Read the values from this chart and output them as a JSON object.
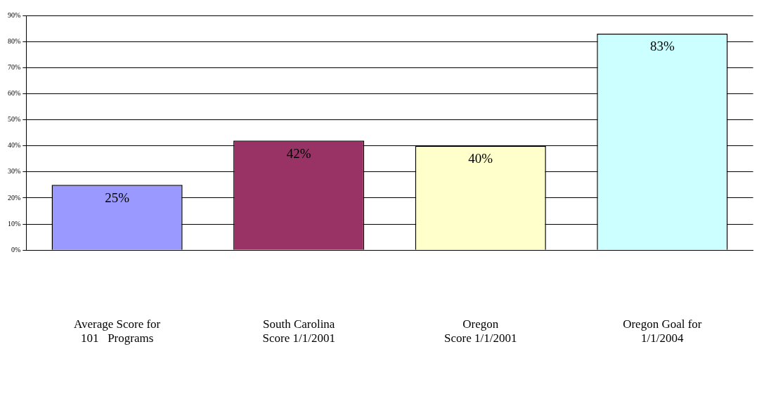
{
  "chart_data": {
    "type": "bar",
    "categories": [
      "Average Score for\n101   Programs",
      "South Carolina\nScore 1/1/2001",
      "Oregon\nScore 1/1/2001",
      "Oregon Goal for\n1/1/2004"
    ],
    "values": [
      25,
      42,
      40,
      83
    ],
    "colors": [
      "#9999ff",
      "#993366",
      "#ffffcc",
      "#ccffff"
    ],
    "value_labels": [
      "25%",
      "42%",
      "40%",
      "83%"
    ],
    "ylim": [
      0,
      90
    ],
    "yticks": [
      {
        "value": 0,
        "label": "0%"
      },
      {
        "value": 10,
        "label": "10%"
      },
      {
        "value": 20,
        "label": "20%"
      },
      {
        "value": 30,
        "label": "30%"
      },
      {
        "value": 40,
        "label": "40%"
      },
      {
        "value": 50,
        "label": "50%"
      },
      {
        "value": 60,
        "label": "60%"
      },
      {
        "value": 70,
        "label": "70%"
      },
      {
        "value": 80,
        "label": "80%"
      },
      {
        "value": 90,
        "label": "90%"
      }
    ],
    "grid": "y",
    "legend": false
  }
}
